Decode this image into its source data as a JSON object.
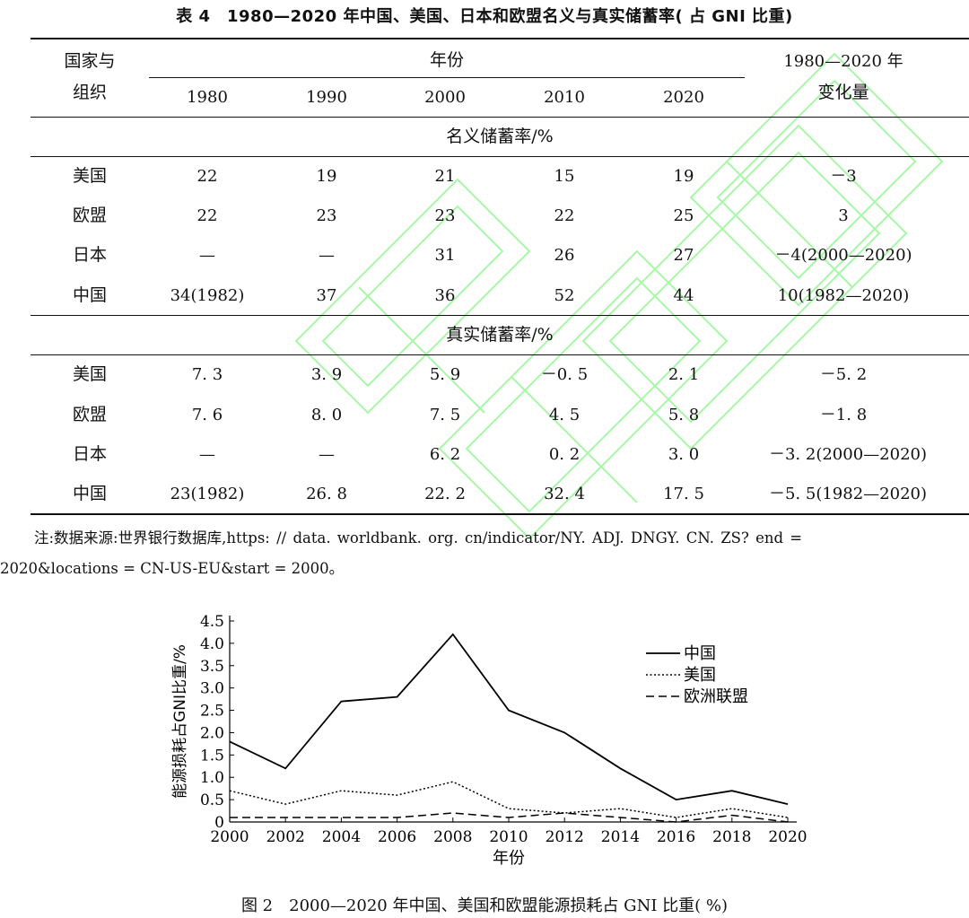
{
  "table": {
    "title": "表 4　1980—2020 年中国、美国、日本和欧盟名义与真实储蓄率( 占 GNI 比重)",
    "header": {
      "col0_line1": "国家与",
      "col0_line2": "组织",
      "years_group": "年份",
      "years": [
        "1980",
        "1990",
        "2000",
        "2010",
        "2020"
      ],
      "change_line1": "1980—2020 年",
      "change_line2": "变化量"
    },
    "sections": [
      {
        "label": "名义储蓄率/%",
        "rows": [
          {
            "name": "美国",
            "values": [
              "22",
              "19",
              "21",
              "15",
              "19"
            ],
            "change": "－3"
          },
          {
            "name": "欧盟",
            "values": [
              "22",
              "23",
              "23",
              "22",
              "25"
            ],
            "change": "3"
          },
          {
            "name": "日本",
            "values": [
              "—",
              "—",
              "31",
              "26",
              "27"
            ],
            "change": "－4(2000—2020)"
          },
          {
            "name": "中国",
            "values": [
              "34(1982)",
              "37",
              "36",
              "52",
              "44"
            ],
            "change": "10(1982—2020)"
          }
        ]
      },
      {
        "label": "真实储蓄率/%",
        "rows": [
          {
            "name": "美国",
            "values": [
              "7. 3",
              "3. 9",
              "5. 9",
              "－0. 5",
              "2. 1"
            ],
            "change": "－5. 2"
          },
          {
            "name": "欧盟",
            "values": [
              "7. 6",
              "8. 0",
              "7. 5",
              "4. 5",
              "5. 8"
            ],
            "change": "－1. 8"
          },
          {
            "name": "日本",
            "values": [
              "—",
              "—",
              "6. 2",
              "0. 2",
              "3. 0"
            ],
            "change": "－3. 2(2000—2020)"
          },
          {
            "name": "中国",
            "values": [
              "23(1982)",
              "26. 8",
              "22. 2",
              "32. 4",
              "17. 5"
            ],
            "change": "－5. 5(1982—2020)"
          }
        ]
      }
    ]
  },
  "note": {
    "line1": "注:数据来源:世界银行数据库,https: // data. worldbank. org. cn/indicator/NY. ADJ. DNGY. CN. ZS? end =",
    "line2": "2020&locations = CN-US-EU&start = 2000。"
  },
  "chart_data": {
    "type": "line",
    "x": [
      2000,
      2002,
      2004,
      2006,
      2008,
      2010,
      2012,
      2014,
      2016,
      2018,
      2020
    ],
    "series": [
      {
        "name": "中国",
        "style": "solid",
        "values": [
          1.8,
          1.2,
          2.7,
          2.8,
          4.2,
          2.5,
          2.0,
          1.2,
          0.5,
          0.7,
          0.4
        ]
      },
      {
        "name": "美国",
        "style": "dotted",
        "values": [
          0.7,
          0.4,
          0.7,
          0.6,
          0.9,
          0.3,
          0.2,
          0.3,
          0.1,
          0.3,
          0.1
        ]
      },
      {
        "name": "欧洲联盟",
        "style": "dashed",
        "values": [
          0.1,
          0.1,
          0.1,
          0.1,
          0.2,
          0.1,
          0.2,
          0.1,
          0.0,
          0.15,
          0.0
        ]
      }
    ],
    "xlabel": "年份",
    "ylabel": "能源损耗占GNI比重/%",
    "ylim": [
      0,
      4.5
    ],
    "xlim": [
      2000,
      2020
    ],
    "yticks": [
      "0",
      "0.5",
      "1.0",
      "1.5",
      "2.0",
      "2.5",
      "3.0",
      "3.5",
      "4.0",
      "4.5"
    ],
    "xticks": [
      "2000",
      "2002",
      "2004",
      "2006",
      "2008",
      "2010",
      "2012",
      "2014",
      "2016",
      "2018",
      "2020"
    ],
    "legend_position": "top-right",
    "grid": false,
    "line_color": "#000000"
  },
  "figure": {
    "caption": "图 2　2000—2020 年中国、美国和欧盟能源损耗占 GNI 比重( %)"
  },
  "watermark": {
    "color": "#7CFC7C"
  }
}
